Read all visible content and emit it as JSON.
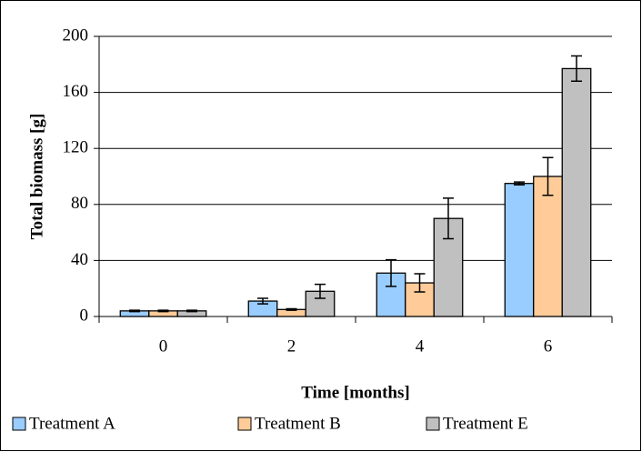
{
  "chart_data": {
    "type": "bar",
    "x_label": "Time [months]",
    "y_label": "Total biomass [g]",
    "categories": [
      "0",
      "2",
      "4",
      "6"
    ],
    "series": [
      {
        "name": "Treatment A",
        "color": "#99ccff",
        "values": [
          4,
          11,
          31,
          95
        ],
        "errors": [
          0.5,
          2,
          9.5,
          1
        ]
      },
      {
        "name": "Treatment B",
        "color": "#ffcc99",
        "values": [
          4,
          5,
          24,
          100
        ],
        "errors": [
          0.5,
          0.5,
          6.5,
          13.5
        ]
      },
      {
        "name": "Treatment E",
        "color": "#c0c0c0",
        "values": [
          4,
          18,
          70,
          177
        ],
        "errors": [
          0.5,
          5,
          14.5,
          9
        ]
      }
    ],
    "ylim": [
      0,
      200
    ],
    "yticks": [
      0,
      40,
      80,
      120,
      160,
      200
    ],
    "grid": true,
    "legend": "bottom"
  }
}
